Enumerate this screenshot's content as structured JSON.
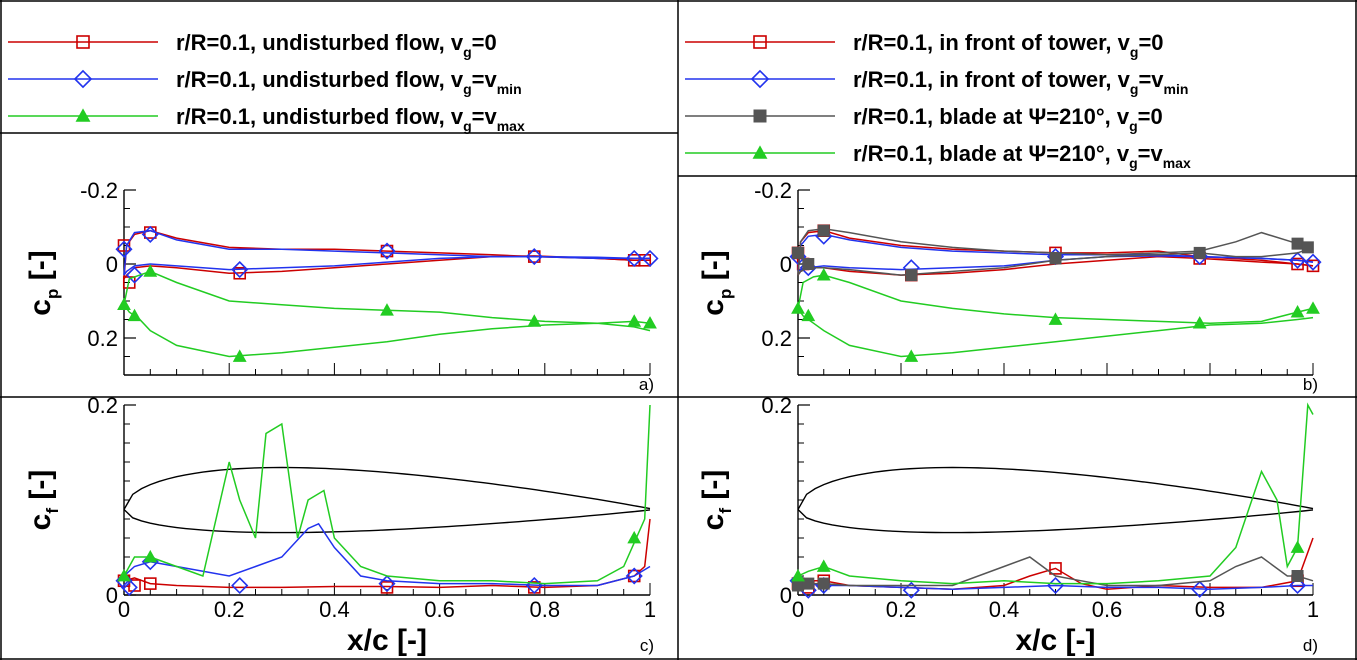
{
  "colors": {
    "red": "#cc0000",
    "blue": "#2233ee",
    "green": "#22cc22",
    "gray": "#555555",
    "black": "#000000"
  },
  "legend_left": [
    {
      "prefix": "r/R=0.1, undisturbed flow, v",
      "sub": "g",
      "eq": "=0",
      "sub2": "",
      "color": "red",
      "marker": "square-open"
    },
    {
      "prefix": "r/R=0.1, undisturbed flow, v",
      "sub": "g",
      "eq": "=v",
      "sub2": "min",
      "color": "blue",
      "marker": "diamond-open"
    },
    {
      "prefix": "r/R=0.1, undisturbed flow, v",
      "sub": "g",
      "eq": "=v",
      "sub2": "max",
      "color": "green",
      "marker": "triangle-filled"
    }
  ],
  "legend_right": [
    {
      "prefix": "r/R=0.1, in front of tower, v",
      "sub": "g",
      "eq": "=0",
      "sub2": "",
      "color": "red",
      "marker": "square-open"
    },
    {
      "prefix": "r/R=0.1, in front of tower, v",
      "sub": "g",
      "eq": "=v",
      "sub2": "min",
      "color": "blue",
      "marker": "diamond-open"
    },
    {
      "prefix": "r/R=0.1, blade at Ψ=210°, v",
      "sub": "g",
      "eq": "=0",
      "sub2": "",
      "color": "gray",
      "marker": "square-filled"
    },
    {
      "prefix": "r/R=0.1, blade at Ψ=210°, v",
      "sub": "g",
      "eq": "=v",
      "sub2": "max",
      "color": "green",
      "marker": "triangle-filled"
    }
  ],
  "axis_labels": {
    "cp": {
      "main": "c",
      "sub": "p",
      "unit": " [-]"
    },
    "cf": {
      "main": "c",
      "sub": "f",
      "unit": " [-]"
    },
    "x": "x/c [-]"
  },
  "chart_data": [
    {
      "panel": "a)",
      "type": "line",
      "quantity": "cp",
      "xlim": [
        0,
        1
      ],
      "ylim": [
        -0.2,
        0.3
      ],
      "y_inverted": true,
      "y_ticks": [
        -0.2,
        0,
        0.2
      ],
      "y_tick_labels": [
        "-0.2",
        "0",
        "0.2"
      ],
      "x_ticks": [],
      "series": [
        {
          "color": "red",
          "marker": "square-open",
          "x": [
            0,
            0.005,
            0.02,
            0.05,
            0.1,
            0.2,
            0.3,
            0.4,
            0.5,
            0.6,
            0.7,
            0.78,
            0.9,
            0.97,
            1.0
          ],
          "y": [
            0.04,
            -0.05,
            -0.08,
            -0.09,
            -0.07,
            -0.045,
            -0.04,
            -0.04,
            -0.035,
            -0.03,
            -0.025,
            -0.02,
            -0.015,
            -0.01,
            -0.01
          ],
          "y2": [
            0.04,
            0.03,
            0.01,
            0.005,
            0.01,
            0.025,
            0.02,
            0.01,
            0.0,
            -0.01,
            -0.02,
            -0.022,
            -0.015,
            -0.01,
            -0.01
          ],
          "mx": [
            0.0,
            0.01,
            0.05,
            0.22,
            0.5,
            0.78,
            0.97,
            0.99
          ],
          "my": [
            -0.05,
            0.05,
            -0.085,
            0.025,
            -0.035,
            -0.02,
            -0.01,
            -0.01
          ]
        },
        {
          "color": "blue",
          "marker": "diamond-open",
          "x": [
            0,
            0.005,
            0.02,
            0.05,
            0.1,
            0.2,
            0.3,
            0.4,
            0.5,
            0.6,
            0.7,
            0.78,
            0.9,
            0.97,
            1.0
          ],
          "y": [
            0.03,
            -0.05,
            -0.085,
            -0.09,
            -0.065,
            -0.04,
            -0.04,
            -0.035,
            -0.03,
            -0.025,
            -0.02,
            -0.02,
            -0.015,
            -0.015,
            -0.015
          ],
          "y2": [
            0.03,
            0.02,
            0.005,
            0.0,
            0.005,
            0.015,
            0.01,
            0.005,
            -0.005,
            -0.015,
            -0.02,
            -0.02,
            -0.018,
            -0.015,
            -0.015
          ],
          "mx": [
            0.0,
            0.02,
            0.05,
            0.22,
            0.5,
            0.78,
            0.97,
            1.0
          ],
          "my": [
            -0.04,
            0.03,
            -0.08,
            0.015,
            -0.035,
            -0.02,
            -0.015,
            -0.015
          ]
        },
        {
          "color": "green",
          "marker": "triangle-filled",
          "x": [
            0,
            0.01,
            0.03,
            0.05,
            0.1,
            0.2,
            0.3,
            0.4,
            0.5,
            0.6,
            0.7,
            0.8,
            0.9,
            0.97,
            1.0
          ],
          "y": [
            0.11,
            0.04,
            0.03,
            0.02,
            0.05,
            0.1,
            0.11,
            0.12,
            0.125,
            0.13,
            0.145,
            0.155,
            0.16,
            0.155,
            0.16
          ],
          "y2": [
            0.11,
            0.13,
            0.15,
            0.18,
            0.22,
            0.25,
            0.24,
            0.225,
            0.21,
            0.19,
            0.175,
            0.165,
            0.16,
            0.17,
            0.18
          ],
          "mx": [
            0.0,
            0.02,
            0.05,
            0.22,
            0.5,
            0.78,
            0.97,
            1.0
          ],
          "my": [
            0.11,
            0.14,
            0.02,
            0.25,
            0.125,
            0.155,
            0.155,
            0.16
          ]
        }
      ]
    },
    {
      "panel": "b)",
      "type": "line",
      "quantity": "cp",
      "xlim": [
        0,
        1
      ],
      "ylim": [
        -0.2,
        0.3
      ],
      "y_inverted": true,
      "y_ticks": [
        -0.2,
        0,
        0.2
      ],
      "y_tick_labels": [
        "-0.2",
        "0",
        "0.2"
      ],
      "x_ticks": [],
      "series": [
        {
          "color": "red",
          "marker": "square-open",
          "x": [
            0,
            0.005,
            0.02,
            0.05,
            0.1,
            0.2,
            0.3,
            0.4,
            0.5,
            0.6,
            0.7,
            0.78,
            0.9,
            0.97,
            1.0
          ],
          "y": [
            0.03,
            -0.06,
            -0.085,
            -0.09,
            -0.07,
            -0.05,
            -0.04,
            -0.035,
            -0.03,
            -0.03,
            -0.035,
            -0.02,
            -0.01,
            0.0,
            0.005
          ],
          "y2": [
            0.03,
            0.02,
            0.01,
            0.01,
            0.02,
            0.03,
            0.025,
            0.015,
            0.0,
            -0.01,
            -0.02,
            -0.015,
            -0.005,
            0.0,
            0.005
          ],
          "mx": [
            0.0,
            0.01,
            0.05,
            0.22,
            0.5,
            0.78,
            0.97,
            1.0
          ],
          "my": [
            -0.03,
            0.0,
            -0.09,
            0.03,
            -0.03,
            -0.015,
            0.0,
            0.005
          ]
        },
        {
          "color": "blue",
          "marker": "diamond-open",
          "x": [
            0,
            0.005,
            0.02,
            0.05,
            0.1,
            0.2,
            0.3,
            0.4,
            0.5,
            0.6,
            0.7,
            0.78,
            0.9,
            0.97,
            1.0
          ],
          "y": [
            0.02,
            -0.05,
            -0.075,
            -0.08,
            -0.065,
            -0.045,
            -0.035,
            -0.03,
            -0.025,
            -0.025,
            -0.025,
            -0.02,
            -0.015,
            -0.01,
            -0.005
          ],
          "y2": [
            0.02,
            0.015,
            0.01,
            0.005,
            0.01,
            0.015,
            0.01,
            0.005,
            -0.01,
            -0.02,
            -0.022,
            -0.02,
            -0.015,
            -0.01,
            -0.005
          ],
          "mx": [
            0.0,
            0.02,
            0.05,
            0.22,
            0.5,
            0.78,
            0.97,
            1.0
          ],
          "my": [
            -0.02,
            0.01,
            -0.075,
            0.01,
            -0.02,
            -0.02,
            -0.01,
            -0.005
          ]
        },
        {
          "color": "gray",
          "marker": "square-filled",
          "x": [
            0,
            0.005,
            0.02,
            0.05,
            0.1,
            0.2,
            0.3,
            0.4,
            0.5,
            0.6,
            0.7,
            0.78,
            0.85,
            0.9,
            0.97,
            1.0
          ],
          "y": [
            0.03,
            -0.06,
            -0.09,
            -0.095,
            -0.085,
            -0.06,
            -0.045,
            -0.035,
            -0.03,
            -0.025,
            -0.03,
            -0.035,
            -0.06,
            -0.085,
            -0.055,
            -0.045
          ],
          "y2": [
            0.03,
            0.02,
            0.01,
            0.01,
            0.015,
            0.03,
            0.02,
            0.01,
            -0.01,
            -0.02,
            -0.025,
            -0.03,
            -0.02,
            -0.02,
            -0.03,
            -0.045
          ],
          "mx": [
            0.0,
            0.02,
            0.05,
            0.22,
            0.5,
            0.78,
            0.97,
            0.99
          ],
          "my": [
            -0.03,
            0.0,
            -0.09,
            0.03,
            -0.015,
            -0.03,
            -0.055,
            -0.045
          ]
        },
        {
          "color": "green",
          "marker": "triangle-filled",
          "x": [
            0,
            0.01,
            0.03,
            0.05,
            0.1,
            0.2,
            0.3,
            0.4,
            0.5,
            0.6,
            0.7,
            0.8,
            0.9,
            0.97,
            1.0
          ],
          "y": [
            0.12,
            0.05,
            0.035,
            0.03,
            0.05,
            0.1,
            0.12,
            0.135,
            0.145,
            0.15,
            0.155,
            0.16,
            0.155,
            0.13,
            0.12
          ],
          "y2": [
            0.12,
            0.14,
            0.16,
            0.18,
            0.22,
            0.25,
            0.24,
            0.225,
            0.21,
            0.195,
            0.18,
            0.165,
            0.16,
            0.15,
            0.145
          ],
          "mx": [
            0.0,
            0.02,
            0.05,
            0.22,
            0.5,
            0.78,
            0.97,
            1.0
          ],
          "my": [
            0.12,
            0.14,
            0.03,
            0.25,
            0.15,
            0.16,
            0.13,
            0.12
          ]
        }
      ]
    },
    {
      "panel": "c)",
      "type": "line",
      "quantity": "cf",
      "xlim": [
        0,
        1
      ],
      "ylim": [
        0,
        0.2
      ],
      "y_ticks": [
        0,
        0.2
      ],
      "y_tick_labels": [
        "0",
        "0.2"
      ],
      "x_ticks": [
        0,
        0.2,
        0.4,
        0.6,
        0.8,
        1
      ],
      "x_tick_labels": [
        "0",
        "0.2",
        "0.4",
        "0.6",
        "0.8",
        "1"
      ],
      "series": [
        {
          "color": "red",
          "marker": "square-open",
          "x": [
            0,
            0.02,
            0.05,
            0.1,
            0.2,
            0.3,
            0.4,
            0.5,
            0.6,
            0.7,
            0.8,
            0.9,
            0.97,
            0.99,
            1.0
          ],
          "y": [
            0.015,
            0.018,
            0.012,
            0.01,
            0.008,
            0.008,
            0.009,
            0.009,
            0.008,
            0.01,
            0.008,
            0.01,
            0.02,
            0.03,
            0.08
          ],
          "mx": [
            0.0,
            0.02,
            0.05,
            0.5,
            0.78,
            0.97
          ],
          "my": [
            0.015,
            0.01,
            0.012,
            0.008,
            0.008,
            0.02
          ]
        },
        {
          "color": "blue",
          "marker": "diamond-open",
          "x": [
            0,
            0.02,
            0.05,
            0.1,
            0.2,
            0.25,
            0.3,
            0.35,
            0.37,
            0.4,
            0.45,
            0.5,
            0.6,
            0.7,
            0.8,
            0.9,
            0.97,
            1.0
          ],
          "y": [
            0.02,
            0.03,
            0.035,
            0.03,
            0.02,
            0.03,
            0.04,
            0.07,
            0.075,
            0.05,
            0.02,
            0.015,
            0.012,
            0.012,
            0.01,
            0.01,
            0.02,
            0.03
          ],
          "mx": [
            0.0,
            0.01,
            0.05,
            0.22,
            0.5,
            0.78,
            0.97
          ],
          "my": [
            0.015,
            0.008,
            0.035,
            0.01,
            0.012,
            0.01,
            0.02
          ]
        },
        {
          "color": "green",
          "marker": "triangle-filled",
          "x": [
            0,
            0.02,
            0.05,
            0.1,
            0.15,
            0.2,
            0.22,
            0.25,
            0.27,
            0.3,
            0.33,
            0.35,
            0.38,
            0.4,
            0.45,
            0.5,
            0.6,
            0.7,
            0.8,
            0.9,
            0.95,
            0.97,
            0.99,
            1.0
          ],
          "y": [
            0.02,
            0.04,
            0.04,
            0.03,
            0.02,
            0.14,
            0.1,
            0.06,
            0.17,
            0.18,
            0.06,
            0.1,
            0.11,
            0.06,
            0.03,
            0.02,
            0.015,
            0.015,
            0.012,
            0.015,
            0.03,
            0.055,
            0.08,
            0.2
          ],
          "mx": [
            0.0,
            0.05,
            0.97
          ],
          "my": [
            0.02,
            0.04,
            0.06
          ]
        }
      ]
    },
    {
      "panel": "d)",
      "type": "line",
      "quantity": "cf",
      "xlim": [
        0,
        1
      ],
      "ylim": [
        0,
        0.2
      ],
      "y_ticks": [
        0,
        0.2
      ],
      "y_tick_labels": [
        "0",
        "0.2"
      ],
      "x_ticks": [
        0,
        0.2,
        0.4,
        0.6,
        0.8,
        1
      ],
      "x_tick_labels": [
        "0",
        "0.2",
        "0.4",
        "0.6",
        "0.8",
        "1"
      ],
      "series": [
        {
          "color": "red",
          "marker": "square-open",
          "x": [
            0,
            0.02,
            0.05,
            0.1,
            0.2,
            0.3,
            0.4,
            0.45,
            0.5,
            0.55,
            0.6,
            0.7,
            0.8,
            0.9,
            0.97,
            1.0
          ],
          "y": [
            0.012,
            0.015,
            0.015,
            0.01,
            0.008,
            0.006,
            0.01,
            0.02,
            0.028,
            0.012,
            0.006,
            0.01,
            0.008,
            0.008,
            0.015,
            0.06
          ],
          "mx": [
            0.0,
            0.02,
            0.05,
            0.5,
            0.97
          ],
          "my": [
            0.012,
            0.008,
            0.015,
            0.028,
            0.015
          ]
        },
        {
          "color": "blue",
          "marker": "diamond-open",
          "x": [
            0,
            0.02,
            0.05,
            0.1,
            0.2,
            0.3,
            0.4,
            0.5,
            0.6,
            0.7,
            0.8,
            0.9,
            0.97,
            1.0
          ],
          "y": [
            0.015,
            0.012,
            0.01,
            0.01,
            0.008,
            0.006,
            0.008,
            0.01,
            0.008,
            0.008,
            0.006,
            0.008,
            0.01,
            0.01
          ],
          "mx": [
            0.0,
            0.02,
            0.05,
            0.22,
            0.5,
            0.78,
            0.97
          ],
          "my": [
            0.015,
            0.005,
            0.01,
            0.005,
            0.01,
            0.006,
            0.01
          ]
        },
        {
          "color": "gray",
          "marker": "square-filled",
          "x": [
            0,
            0.02,
            0.05,
            0.1,
            0.2,
            0.3,
            0.4,
            0.45,
            0.5,
            0.55,
            0.6,
            0.7,
            0.8,
            0.85,
            0.9,
            0.95,
            0.97,
            1.0
          ],
          "y": [
            0.01,
            0.012,
            0.012,
            0.01,
            0.01,
            0.01,
            0.03,
            0.04,
            0.02,
            0.015,
            0.01,
            0.01,
            0.015,
            0.03,
            0.04,
            0.02,
            0.02,
            0.015
          ],
          "mx": [
            0.0,
            0.02,
            0.05,
            0.97
          ],
          "my": [
            0.01,
            0.012,
            0.012,
            0.02
          ]
        },
        {
          "color": "green",
          "marker": "triangle-filled",
          "x": [
            0,
            0.02,
            0.05,
            0.1,
            0.2,
            0.3,
            0.4,
            0.5,
            0.6,
            0.7,
            0.8,
            0.85,
            0.9,
            0.93,
            0.95,
            0.97,
            0.99,
            1.0
          ],
          "y": [
            0.02,
            0.025,
            0.03,
            0.02,
            0.015,
            0.012,
            0.015,
            0.012,
            0.012,
            0.015,
            0.02,
            0.05,
            0.13,
            0.1,
            0.03,
            0.05,
            0.2,
            0.19
          ],
          "mx": [
            0.0,
            0.05,
            0.97
          ],
          "my": [
            0.02,
            0.03,
            0.05
          ]
        }
      ]
    }
  ]
}
